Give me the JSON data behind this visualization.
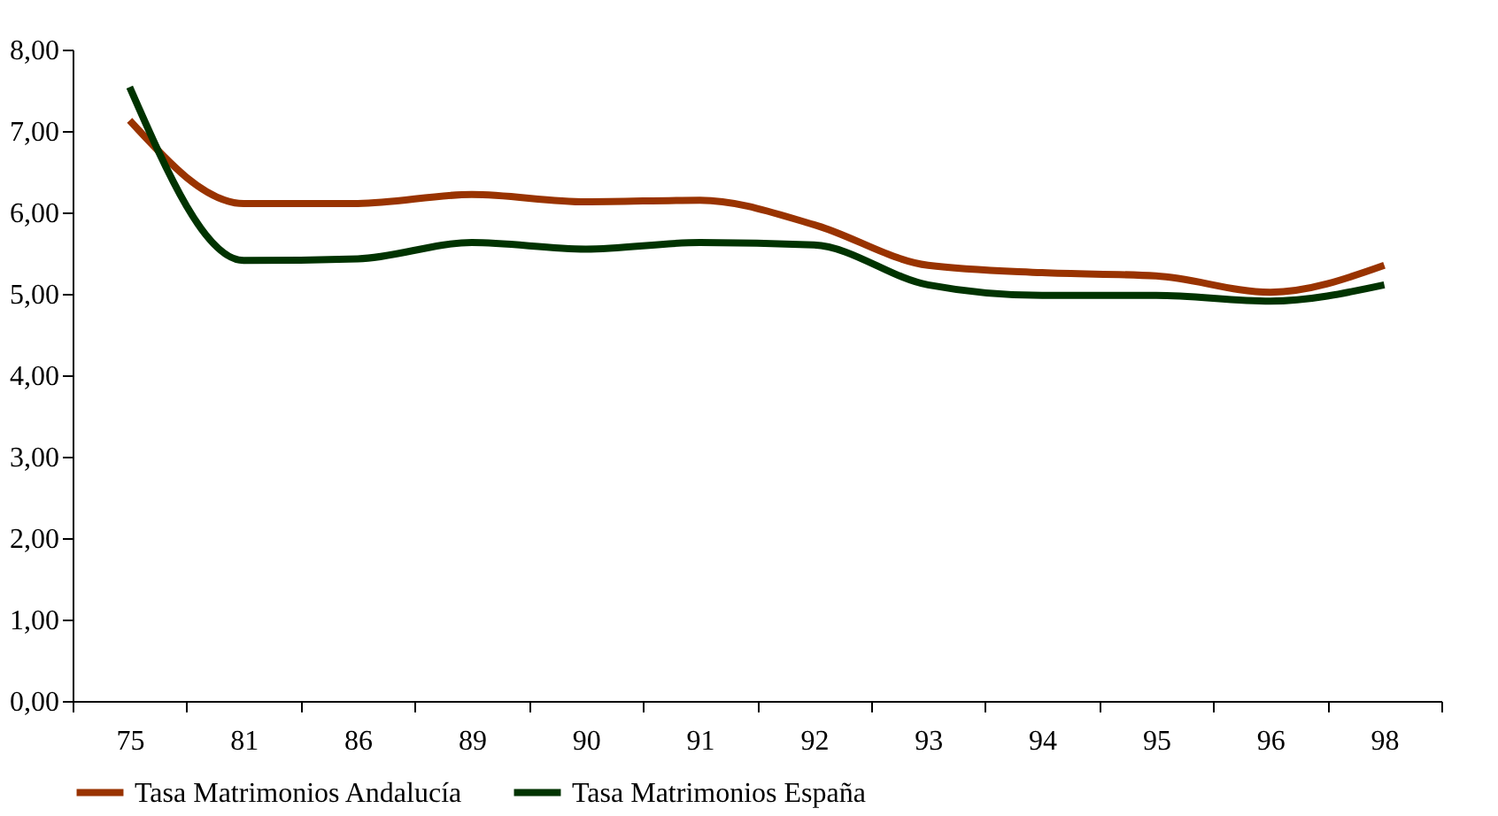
{
  "chart_data": {
    "type": "line",
    "categories": [
      "75",
      "81",
      "86",
      "89",
      "90",
      "91",
      "92",
      "93",
      "94",
      "95",
      "96",
      "98"
    ],
    "series": [
      {
        "name": "Tasa Matrimonios Andalucía",
        "color": "#993300",
        "values": [
          7.13,
          6.11,
          6.11,
          6.22,
          6.13,
          6.15,
          5.85,
          5.35,
          5.26,
          5.22,
          5.02,
          5.35
        ]
      },
      {
        "name": "Tasa Matrimonios España",
        "color": "#003300",
        "values": [
          7.54,
          5.41,
          5.43,
          5.63,
          5.55,
          5.63,
          5.6,
          5.11,
          4.98,
          4.98,
          4.91,
          5.11
        ]
      }
    ],
    "ylim": [
      0,
      8
    ],
    "yticks": [
      {
        "value": 0,
        "label": "0,00"
      },
      {
        "value": 1,
        "label": "1,00"
      },
      {
        "value": 2,
        "label": "2,00"
      },
      {
        "value": 3,
        "label": "3,00"
      },
      {
        "value": 4,
        "label": "4,00"
      },
      {
        "value": 5,
        "label": "5,00"
      },
      {
        "value": 6,
        "label": "6,00"
      },
      {
        "value": 7,
        "label": "7,00"
      },
      {
        "value": 8,
        "label": "8,00"
      }
    ],
    "grid": false,
    "legend": "bottom",
    "marker": "none",
    "line_style": "solid"
  }
}
